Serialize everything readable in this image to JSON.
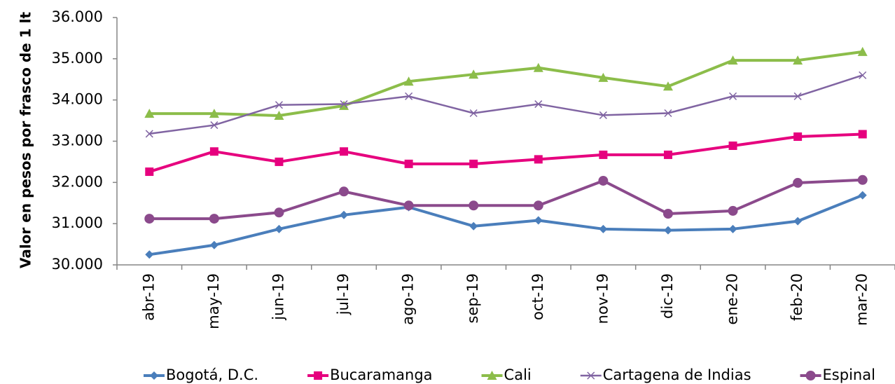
{
  "chart_data": {
    "type": "line",
    "y_label": "Valor en pesos por frasco de 1 lt",
    "categories": [
      "abr-19",
      "may-19",
      "jun-19",
      "jul-19",
      "ago-19",
      "sep-19",
      "oct-19",
      "nov-19",
      "dic-19",
      "ene-20",
      "feb-20",
      "mar-20"
    ],
    "series": [
      {
        "name": "Bogotá, D.C.",
        "color": "#4a7ebb",
        "marker": "diamond",
        "values": [
          30250,
          30480,
          30870,
          31210,
          31400,
          30940,
          31080,
          30870,
          30840,
          30870,
          31060,
          31690
        ]
      },
      {
        "name": "Bucaramanga",
        "color": "#e6007e",
        "marker": "square",
        "values": [
          32260,
          32750,
          32500,
          32750,
          32450,
          32450,
          32560,
          32670,
          32670,
          32890,
          33110,
          33170
        ]
      },
      {
        "name": "Cali",
        "color": "#8cbd4a",
        "marker": "triangle",
        "values": [
          33670,
          33670,
          33620,
          33860,
          34450,
          34620,
          34780,
          34540,
          34330,
          34960,
          34960,
          35170
        ]
      },
      {
        "name": "Cartagena de Indias",
        "color": "#8064a2",
        "marker": "x",
        "values": [
          33180,
          33390,
          33880,
          33900,
          34090,
          33680,
          33900,
          33630,
          33680,
          34090,
          34090,
          34600
        ]
      },
      {
        "name": "Espinal",
        "color": "#8b4a8c",
        "marker": "circle",
        "values": [
          31120,
          31120,
          31270,
          31780,
          31440,
          31440,
          31440,
          32040,
          31240,
          31310,
          31990,
          32060
        ]
      }
    ],
    "ylim": [
      30000,
      36000
    ],
    "yticks": [
      {
        "value": 30000,
        "label": "30.000"
      },
      {
        "value": 31000,
        "label": "31.000"
      },
      {
        "value": 32000,
        "label": "32.000"
      },
      {
        "value": 33000,
        "label": "33.000"
      },
      {
        "value": 34000,
        "label": "34.000"
      },
      {
        "value": 35000,
        "label": "35.000"
      },
      {
        "value": 36000,
        "label": "36.000"
      }
    ],
    "grid": false,
    "legend": "bottom"
  }
}
